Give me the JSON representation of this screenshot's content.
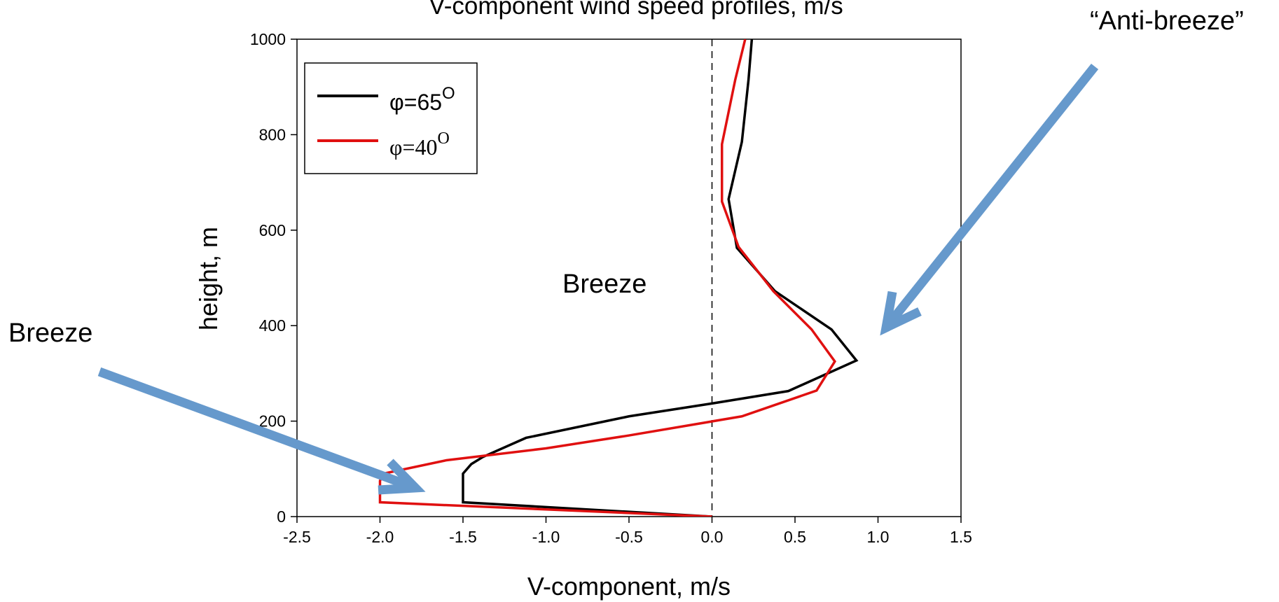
{
  "chart_data": {
    "type": "line",
    "title": "V-component wind speed profiles, m/s",
    "xlabel": "V-component, m/s",
    "ylabel": "height, m",
    "xlim": [
      -2.5,
      1.5
    ],
    "ylim": [
      0,
      1000
    ],
    "x_ticks": [
      "-2.5",
      "-2.0",
      "-1.5",
      "-1.0",
      "-0.5",
      "0.0",
      "0.5",
      "1.0",
      "1.5"
    ],
    "y_ticks": [
      "0",
      "200",
      "400",
      "600",
      "800",
      "1000"
    ],
    "grid": false,
    "legend_position": "top-left",
    "zero_line": {
      "x": 0,
      "style": "dashed"
    },
    "series": [
      {
        "name": "φ=65",
        "superscript": "O",
        "color": "#000000",
        "points": [
          [
            0.0,
            0
          ],
          [
            -1.5,
            30
          ],
          [
            -1.5,
            90
          ],
          [
            -1.45,
            110
          ],
          [
            -1.38,
            125
          ],
          [
            -1.12,
            165
          ],
          [
            -0.5,
            210
          ],
          [
            0.0,
            237
          ],
          [
            0.46,
            263
          ],
          [
            0.87,
            327
          ],
          [
            0.72,
            392
          ],
          [
            0.38,
            472
          ],
          [
            0.15,
            563
          ],
          [
            0.1,
            665
          ],
          [
            0.18,
            785
          ],
          [
            0.22,
            915
          ],
          [
            0.24,
            1000
          ]
        ]
      },
      {
        "name": "φ=40",
        "superscript": "O",
        "color": "#e01010",
        "points": [
          [
            0.0,
            0
          ],
          [
            -2.0,
            30
          ],
          [
            -2.0,
            60
          ],
          [
            -2.0,
            75
          ],
          [
            -1.98,
            90
          ],
          [
            -1.6,
            118
          ],
          [
            -1.0,
            143
          ],
          [
            -0.5,
            170
          ],
          [
            0.18,
            210
          ],
          [
            0.63,
            264
          ],
          [
            0.74,
            325
          ],
          [
            0.6,
            392
          ],
          [
            0.37,
            472
          ],
          [
            0.16,
            565
          ],
          [
            0.06,
            660
          ],
          [
            0.06,
            780
          ],
          [
            0.14,
            915
          ],
          [
            0.2,
            1000
          ]
        ]
      }
    ]
  },
  "annotations": {
    "anti_breeze": "“Anti-breeze”",
    "breeze_outside": "Breeze",
    "breeze_inside": "Breeze",
    "arrow_color": "#6699cc"
  }
}
